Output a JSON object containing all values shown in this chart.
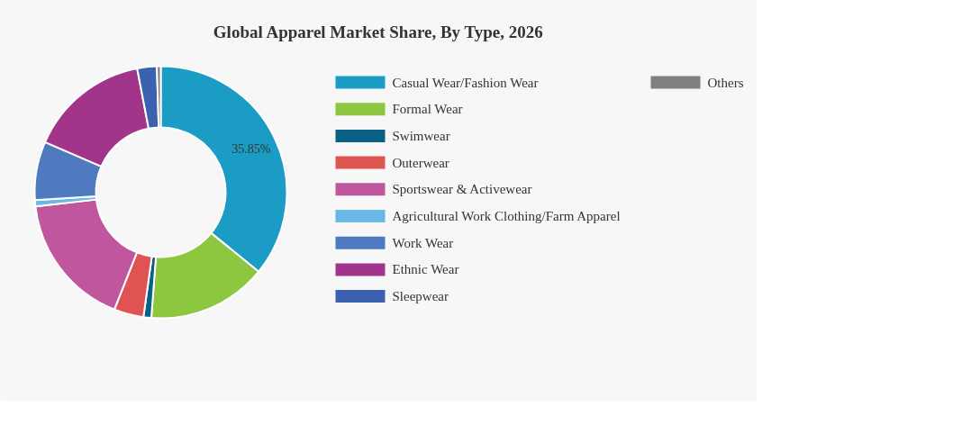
{
  "chart_data": {
    "type": "donut",
    "title": "Global Apparel Market Share, By Type, 2026",
    "categories": [
      "Casual Wear/Fashion Wear",
      "Formal Wear",
      "Swimwear",
      "Outerwear",
      "Sportswear & Activewear",
      "Agricultural Work Clothing/Farm Apparel",
      "Work Wear",
      "Ethnic Wear",
      "Sleepwear",
      "Others"
    ],
    "values": [
      35.85,
      15.35,
      1,
      3.8,
      17.2,
      0.8,
      7.5,
      15.5,
      2.5,
      0.5
    ],
    "colors": [
      "#1b9cc4",
      "#8dc63f",
      "#0a5f84",
      "#e05353",
      "#c0579e",
      "#6ab8e6",
      "#4f7ac0",
      "#a2358a",
      "#3b62b0",
      "#808080"
    ],
    "value_labels": [
      "35.85%",
      null,
      null,
      null,
      null,
      null,
      null,
      null,
      null,
      null
    ],
    "legend": "right"
  }
}
